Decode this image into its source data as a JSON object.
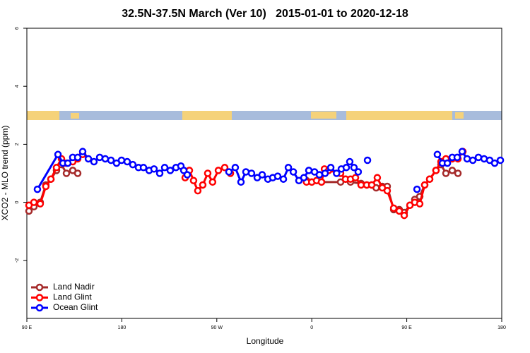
{
  "chart_data": {
    "type": "line",
    "title": "32.5N-37.5N March (Ver 10)   2015-01-01 to 2020-12-18",
    "x_label": "Longitude",
    "y_label": "XCO2 - MLO trend (ppm)",
    "xlim": [
      90,
      540
    ],
    "xticks": [
      {
        "value": 90,
        "label": "90 E"
      },
      {
        "value": 180,
        "label": "180"
      },
      {
        "value": 270,
        "label": "90 W"
      },
      {
        "value": 360,
        "label": "0"
      },
      {
        "value": 450,
        "label": "90 E"
      },
      {
        "value": 540,
        "label": "180"
      }
    ],
    "ylim": [
      -4,
      6
    ],
    "yticks": [
      -2,
      0,
      2,
      4,
      6
    ],
    "legend": "bottom-left",
    "series": [
      {
        "name": "Land Nadir",
        "color": "#a52a2a",
        "x": [
          92,
          96.7,
          102.7,
          108,
          112.8,
          118.1,
          122.8,
          127.5,
          133.5,
          138.2,
          null,
          355,
          360,
          364.6,
          369.2,
          387.3,
          392,
          396.7,
          406.7,
          412.1,
          416.8,
          421,
          426.8,
          431.5,
          437.6,
          442.9,
          447.6,
          453,
          457.6,
          462.3,
          467,
          471.7,
          477.7,
          482.4,
          487.1,
          493.1,
          498.5
        ],
        "values": [
          -0.3,
          -0.15,
          0.0,
          0.6,
          0.8,
          1.1,
          1.3,
          1.0,
          1.1,
          1.0,
          null,
          0.75,
          0.7,
          0.75,
          0.7,
          0.7,
          0.8,
          0.7,
          0.65,
          0.6,
          0.6,
          0.5,
          0.55,
          0.55,
          -0.25,
          -0.25,
          -0.35,
          -0.1,
          0.1,
          0.2,
          0.6,
          0.8,
          1.1,
          1.3,
          1.0,
          1.1,
          1.0
        ]
      },
      {
        "name": "Land Glint",
        "color": "#ff0000",
        "x": [
          92,
          96.7,
          102.7,
          108,
          112.8,
          118.1,
          122.8,
          127.5,
          133.5,
          138.2,
          142.9,
          null,
          240,
          244,
          248,
          252,
          256.7,
          261.4,
          266,
          271.5,
          277.5,
          282.9,
          null,
          355,
          360,
          364.6,
          369.2,
          372,
          376,
          387.3,
          392,
          396.7,
          401.4,
          406.7,
          412.1,
          416.8,
          422.1,
          426.8,
          431.5,
          437.6,
          442.9,
          447.6,
          453,
          457.6,
          462.3,
          467,
          471.7,
          477.7,
          482.4,
          487.1,
          493.1,
          498.5,
          503.2
        ],
        "values": [
          -0.1,
          0.0,
          -0.05,
          0.55,
          0.8,
          1.2,
          1.5,
          1.35,
          1.4,
          1.5,
          1.65,
          null,
          0.85,
          1.1,
          0.75,
          0.4,
          0.6,
          1.0,
          0.7,
          1.1,
          1.2,
          1.0,
          null,
          0.7,
          0.7,
          0.75,
          0.7,
          1.15,
          1.1,
          1.0,
          0.8,
          0.8,
          0.85,
          0.6,
          0.6,
          0.6,
          0.85,
          0.5,
          0.4,
          -0.2,
          -0.3,
          -0.45,
          -0.1,
          0.0,
          -0.05,
          0.6,
          0.8,
          1.1,
          1.4,
          1.5,
          1.5,
          1.5,
          1.75
        ]
      },
      {
        "name": "Ocean Glint",
        "color": "#0000ff",
        "x": [
          100,
          119.5,
          124.2,
          128.8,
          133.5,
          138.2,
          142.9,
          148.3,
          153.6,
          159,
          164.3,
          169.7,
          175,
          179.7,
          185.1,
          190.4,
          195.8,
          200.5,
          205.9,
          210.5,
          215.9,
          220.6,
          225.9,
          231.3,
          236,
          238.7,
          242,
          null,
          281.5,
          287.5,
          292.9,
          297.6,
          302.9,
          308.3,
          313,
          318.4,
          323,
          327.7,
          333.1,
          337.8,
          342.5,
          347.8,
          352.5,
          357.2,
          362.6,
          367.2,
          372.6,
          378,
          383.5,
          388,
          392.7,
          396,
          400,
          404,
          null,
          412.8,
          null,
          459.7,
          null,
          479,
          483.8,
          488.5,
          493.1,
          497.8,
          502.5,
          507.2,
          512.6,
          517.9,
          523.3,
          528.6,
          533.3,
          538.7
        ],
        "values": [
          0.45,
          1.65,
          1.35,
          1.35,
          1.55,
          1.55,
          1.75,
          1.5,
          1.4,
          1.55,
          1.5,
          1.45,
          1.35,
          1.45,
          1.4,
          1.3,
          1.2,
          1.2,
          1.1,
          1.15,
          1.0,
          1.2,
          1.1,
          1.2,
          1.25,
          1.1,
          0.95,
          null,
          1.05,
          1.2,
          0.7,
          1.05,
          1.0,
          0.85,
          0.95,
          0.8,
          0.85,
          0.9,
          0.8,
          1.2,
          1.05,
          0.75,
          0.85,
          1.1,
          1.05,
          0.95,
          1.0,
          1.2,
          1.0,
          1.15,
          1.2,
          1.4,
          1.2,
          1.05,
          null,
          1.45,
          null,
          0.45,
          null,
          1.65,
          1.35,
          1.35,
          1.55,
          1.55,
          1.75,
          1.5,
          1.45,
          1.55,
          1.5,
          1.45,
          1.35,
          1.45
        ]
      }
    ]
  }
}
